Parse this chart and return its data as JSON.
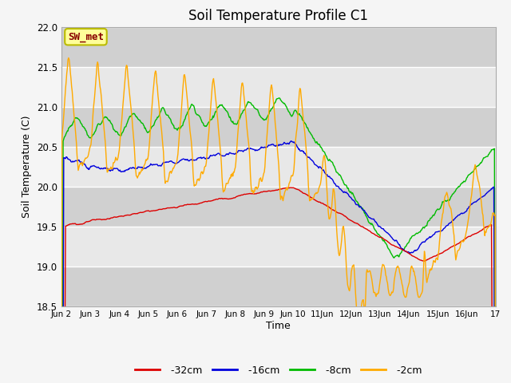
{
  "title": "Soil Temperature Profile C1",
  "xlabel": "Time",
  "ylabel": "Soil Temperature (C)",
  "ylim": [
    18.5,
    22.0
  ],
  "yticks": [
    18.5,
    19.0,
    19.5,
    20.0,
    20.5,
    21.0,
    21.5,
    22.0
  ],
  "xtick_labels": [
    "Jun 2",
    "Jun 3",
    "Jun 4",
    "Jun 5",
    "Jun 6",
    "Jun 7",
    "Jun 8",
    "Jun 9",
    "Jun 10",
    "11Jun",
    "12Jun",
    "13Jun",
    "14Jun",
    "15Jun",
    "16Jun",
    "17"
  ],
  "colors": {
    "-32cm": "#dd0000",
    "-16cm": "#0000dd",
    "-8cm": "#00bb00",
    "-2cm": "#ffaa00"
  },
  "annotation_text": "SW_met",
  "annotation_bg": "#ffff99",
  "annotation_border": "#bbbb00",
  "annotation_text_color": "#880000",
  "plot_bg_light": "#e8e8e8",
  "plot_bg_dark": "#d0d0d0",
  "fig_bg": "#f5f5f5",
  "title_fontsize": 12,
  "n_points": 720
}
